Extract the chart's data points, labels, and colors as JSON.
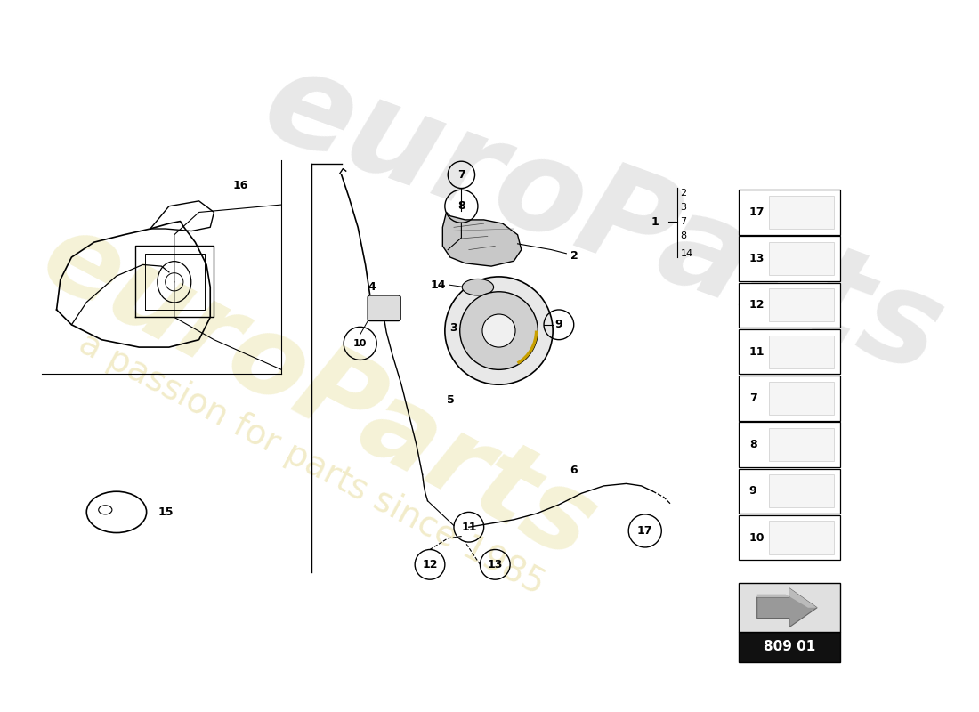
{
  "page_code": "809 01",
  "background_color": "#ffffff",
  "watermark_text_1": "euroParts",
  "watermark_text_2": "a passion for parts since 1985",
  "watermark_color_1": "#d4c050",
  "watermark_color_2": "#c8b820",
  "ref_numbers_right": [
    "2",
    "3",
    "7",
    "8",
    "14"
  ],
  "sidebar_items": [
    "17",
    "13",
    "12",
    "11",
    "7",
    "8",
    "9",
    "10"
  ],
  "figsize": [
    11.0,
    8.0
  ],
  "dpi": 100
}
